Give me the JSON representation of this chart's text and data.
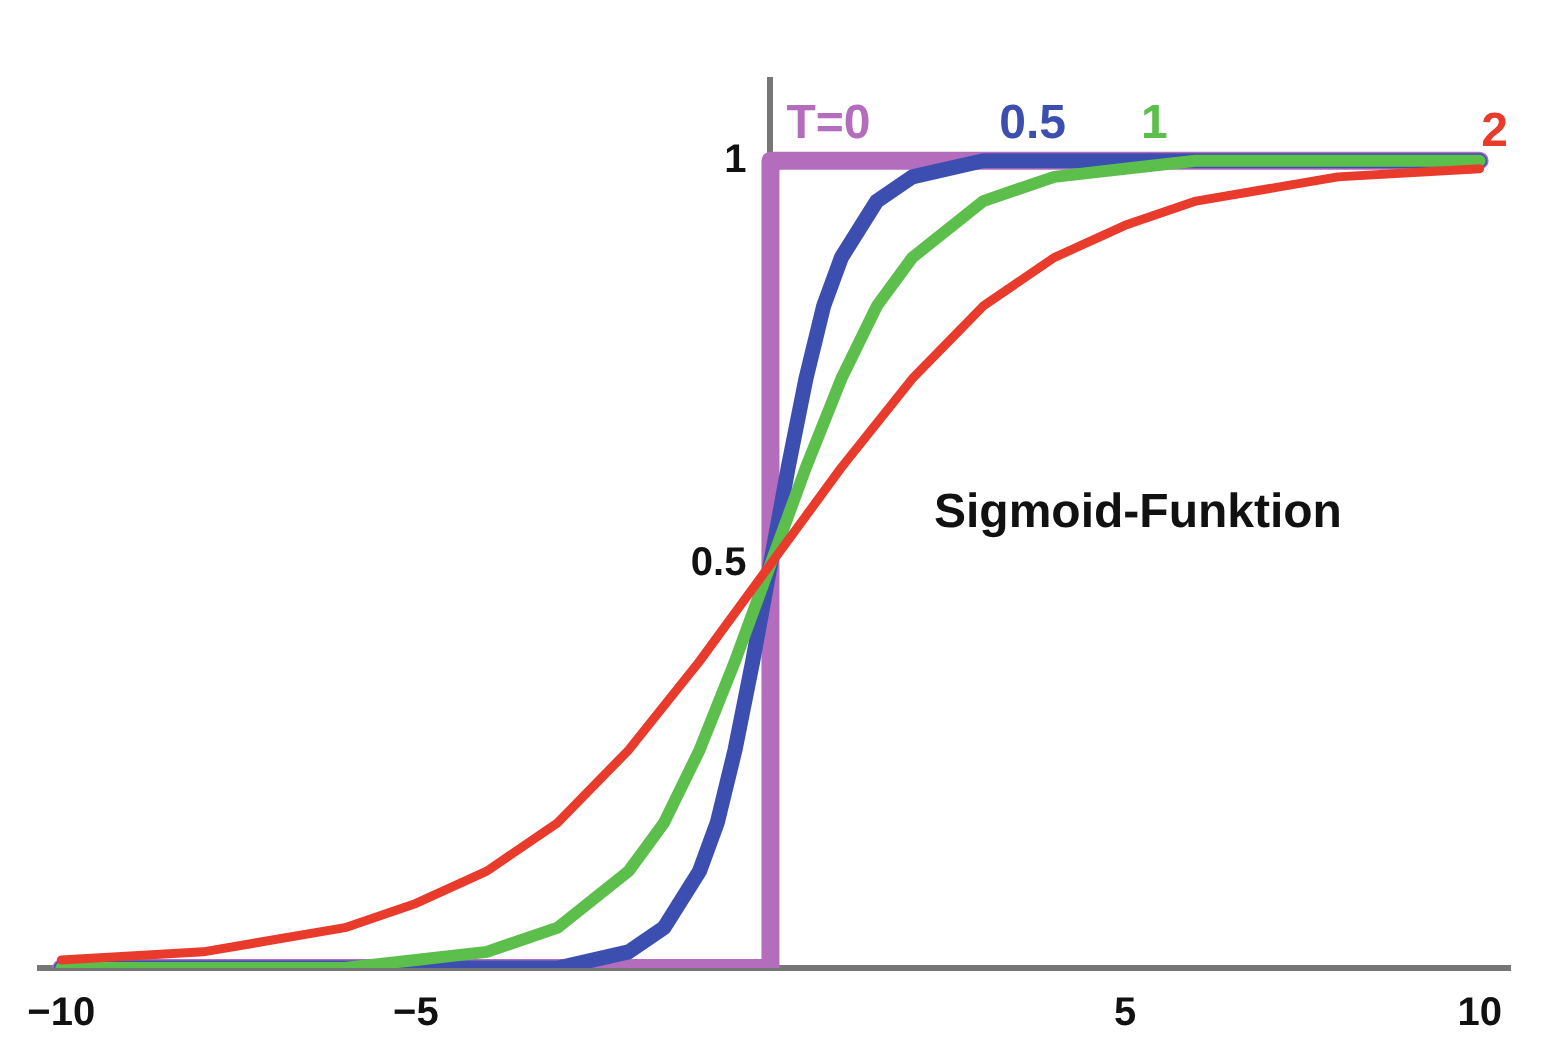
{
  "chart_data": {
    "type": "line",
    "xlim": [
      -10.3,
      10.4
    ],
    "ylim": [
      0,
      1.1
    ],
    "xticks": [
      -10,
      -5,
      5,
      10
    ],
    "yticks": [
      0.5,
      1
    ],
    "grid": false,
    "legend": false,
    "marker": "none",
    "line_style": "solid",
    "annotations": [
      "Sigmoid-Funktion"
    ],
    "series": [
      {
        "name": "T=0",
        "color": "#b46cbd",
        "x": [
          -10,
          0,
          0,
          10
        ],
        "values": [
          0,
          0,
          1,
          1
        ]
      },
      {
        "name": "0.5",
        "color": "#3c4fb0",
        "x": [
          -10,
          -4,
          -3,
          -2,
          -1.5,
          -1,
          -0.75,
          -0.5,
          -0.25,
          0,
          0.25,
          0.5,
          0.75,
          1,
          1.5,
          2,
          3,
          4,
          10
        ],
        "values": [
          0,
          0,
          0,
          0.02,
          0.05,
          0.12,
          0.18,
          0.27,
          0.38,
          0.5,
          0.62,
          0.73,
          0.82,
          0.88,
          0.95,
          0.98,
          1,
          1,
          1
        ]
      },
      {
        "name": "1",
        "color": "#5cbf4c",
        "x": [
          -10,
          -6,
          -5,
          -4,
          -3,
          -2,
          -1.5,
          -1,
          -0.5,
          0,
          0.5,
          1,
          1.5,
          2,
          3,
          4,
          5,
          6,
          10
        ],
        "values": [
          0,
          0,
          0.01,
          0.02,
          0.05,
          0.12,
          0.18,
          0.27,
          0.38,
          0.5,
          0.62,
          0.73,
          0.82,
          0.88,
          0.95,
          0.98,
          0.99,
          1,
          1
        ]
      },
      {
        "name": "2",
        "color": "#e83b2c",
        "x": [
          -10,
          -8,
          -6,
          -5,
          -4,
          -3,
          -2,
          -1,
          0,
          1,
          2,
          3,
          4,
          5,
          6,
          8,
          10
        ],
        "values": [
          0.01,
          0.02,
          0.05,
          0.08,
          0.12,
          0.18,
          0.27,
          0.38,
          0.5,
          0.62,
          0.73,
          0.82,
          0.88,
          0.92,
          0.95,
          0.98,
          0.99
        ]
      }
    ]
  }
}
